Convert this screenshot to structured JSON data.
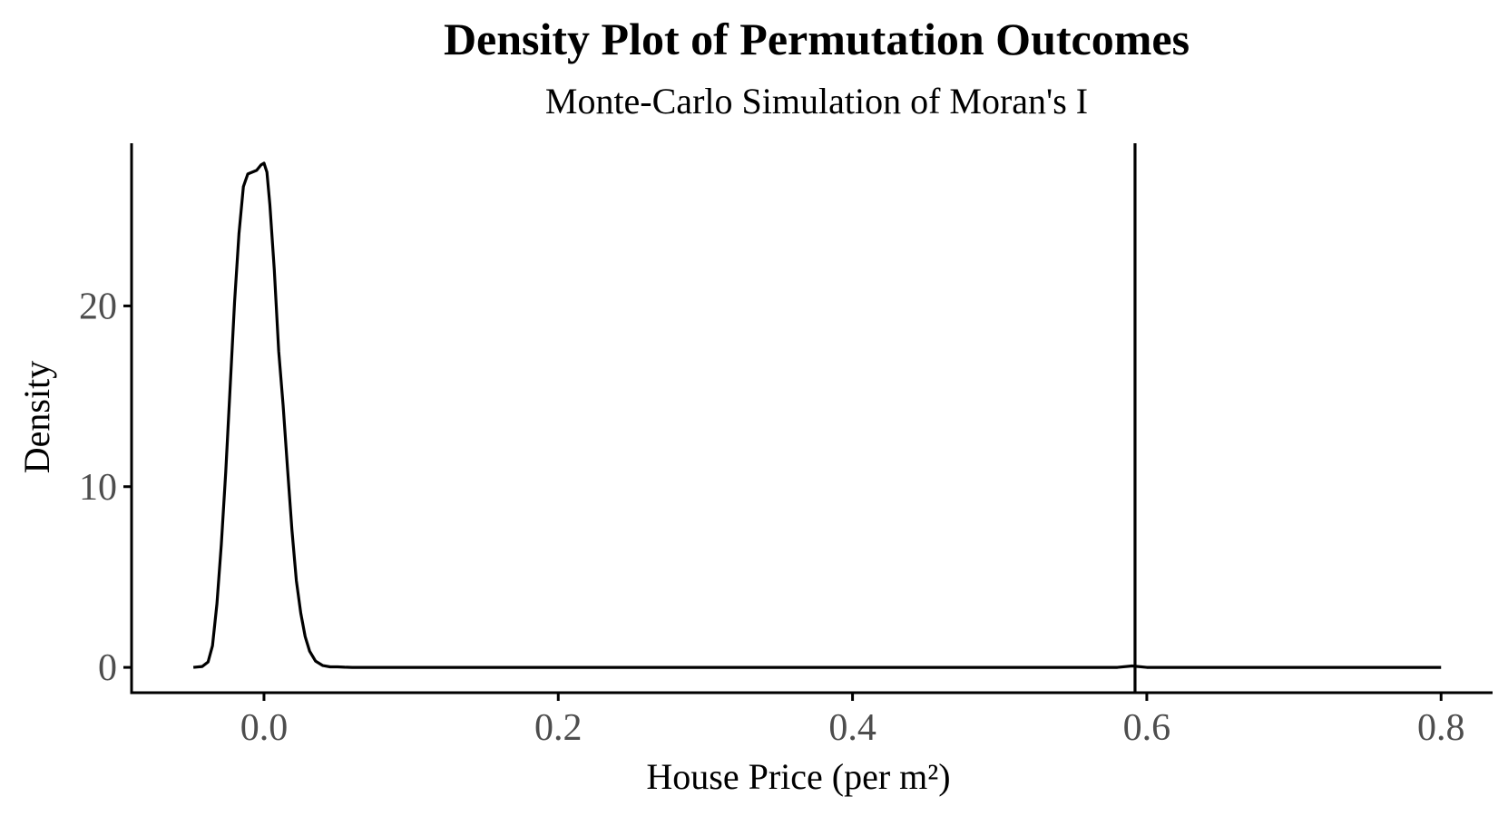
{
  "chart_data": {
    "type": "line",
    "title": "Density Plot of Permutation Outcomes",
    "subtitle": "Monte-Carlo Simulation of Moran's I",
    "xlabel": "House Price (per m²)",
    "ylabel": "Density",
    "xlim": [
      -0.09,
      0.835
    ],
    "ylim": [
      -1.4,
      29.0
    ],
    "x_ticks": [
      0.0,
      0.2,
      0.4,
      0.6,
      0.8
    ],
    "x_tick_labels": [
      "0.0",
      "0.2",
      "0.4",
      "0.6",
      "0.8"
    ],
    "y_ticks": [
      0,
      10,
      20
    ],
    "y_tick_labels": [
      "0",
      "10",
      "20"
    ],
    "grid": false,
    "legend": "none",
    "line_color": "#000000",
    "series": [
      {
        "x": [
          -0.048,
          -0.042,
          -0.038,
          -0.035,
          -0.032,
          -0.029,
          -0.026,
          -0.023,
          -0.02,
          -0.017,
          -0.014,
          -0.011,
          -0.008,
          -0.005,
          -0.002,
          0.0,
          0.002,
          0.004,
          0.007,
          0.01,
          0.013,
          0.016,
          0.019,
          0.022,
          0.025,
          0.028,
          0.031,
          0.035,
          0.04,
          0.045,
          0.05,
          0.055,
          0.06,
          0.08,
          0.2,
          0.4,
          0.58,
          0.59,
          0.6,
          0.7,
          0.8
        ],
        "y": [
          0.0,
          0.05,
          0.3,
          1.2,
          3.5,
          6.8,
          10.8,
          15.5,
          20.2,
          24.0,
          26.6,
          27.3,
          27.4,
          27.5,
          27.8,
          27.9,
          27.4,
          25.6,
          22.0,
          17.5,
          14.5,
          11.0,
          7.6,
          4.8,
          3.0,
          1.7,
          0.9,
          0.35,
          0.1,
          0.03,
          0.03,
          0.01,
          0.0,
          0.0,
          0.0,
          0.0,
          0.0,
          0.08,
          0.0,
          0.0,
          0.0
        ]
      }
    ],
    "reference_line": {
      "orientation": "vertical",
      "x": 0.592
    }
  }
}
